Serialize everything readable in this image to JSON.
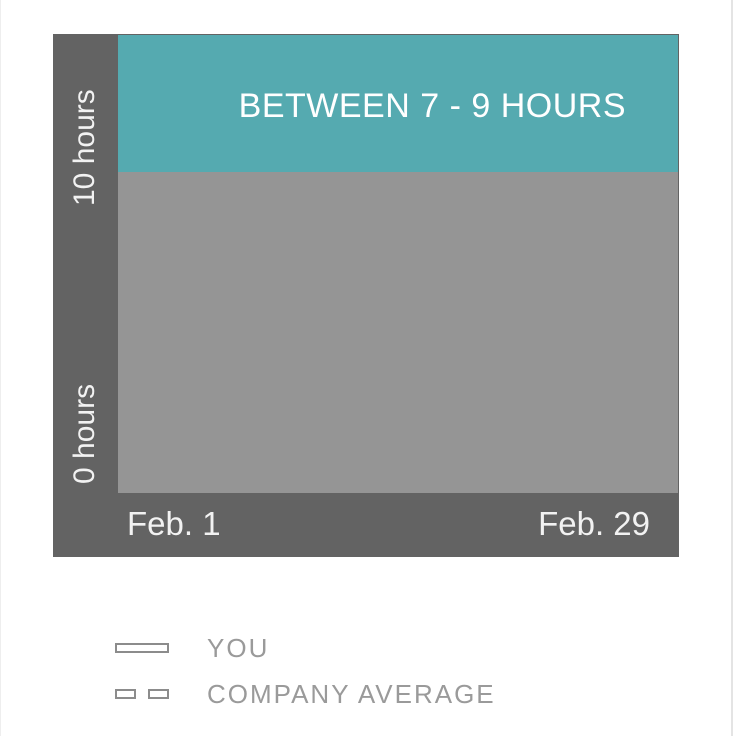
{
  "chart_data": {
    "type": "area",
    "title": "",
    "xlabel": "",
    "ylabel": "",
    "x_ticks": [
      "Feb. 1",
      "Feb. 29"
    ],
    "y_ticks": [
      "0 hours",
      "10 hours"
    ],
    "ylim": [
      0,
      10
    ],
    "reference_band": {
      "label": "BETWEEN 7 - 9 HOURS",
      "color": "#55aab0"
    },
    "legend": [
      {
        "name": "YOU",
        "style": "solid"
      },
      {
        "name": "COMPANY AVERAGE",
        "style": "dashed"
      }
    ],
    "legend_placement": "bottom",
    "grid": false
  },
  "colors": {
    "frame": "#636363",
    "plot_background": "#959595",
    "band": "#55aab0"
  }
}
